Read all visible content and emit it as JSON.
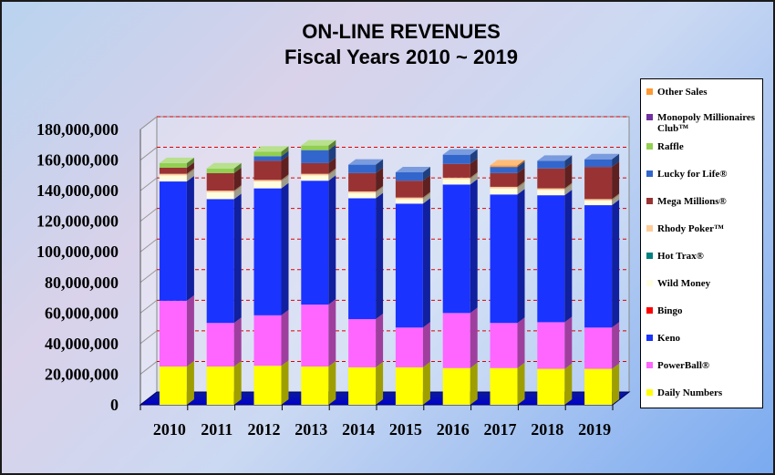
{
  "chart_data": {
    "type": "bar",
    "stacked": true,
    "title": "ON-LINE REVENUES",
    "subtitle": "Fiscal Years 2010 ~ 2019",
    "categories": [
      "2010",
      "2011",
      "2012",
      "2013",
      "2014",
      "2015",
      "2016",
      "2017",
      "2018",
      "2019"
    ],
    "ylim": [
      0,
      180000000
    ],
    "yticks": [
      "0",
      "20,000,000",
      "40,000,000",
      "60,000,000",
      "80,000,000",
      "100,000,000",
      "120,000,000",
      "140,000,000",
      "160,000,000",
      "180,000,000"
    ],
    "grid": true,
    "legend_position": "right",
    "series": [
      {
        "name": "Daily Numbers",
        "color": "#ffff00",
        "values": [
          25000000,
          25000000,
          25500000,
          25000000,
          24500000,
          24500000,
          24000000,
          24000000,
          23500000,
          23500000
        ]
      },
      {
        "name": "PowerBall®",
        "color": "#ff66ff",
        "values": [
          43000000,
          28500000,
          33000000,
          40500000,
          31500000,
          26000000,
          36000000,
          29500000,
          30500000,
          27000000
        ]
      },
      {
        "name": "Keno",
        "color": "#1a33ff",
        "values": [
          78000000,
          81000000,
          83000000,
          81000000,
          79000000,
          81000000,
          84000000,
          84000000,
          83000000,
          80000000
        ]
      },
      {
        "name": "Bingo",
        "color": "#ff0000",
        "values": [
          0,
          0,
          0,
          0,
          0,
          0,
          0,
          0,
          0,
          0
        ]
      },
      {
        "name": "Wild Money",
        "color": "#fffde0",
        "values": [
          4000000,
          4500000,
          4500000,
          3500000,
          3500000,
          3000000,
          3500000,
          4000000,
          3500000,
          3000000
        ]
      },
      {
        "name": "Hot Trax®",
        "color": "#008080",
        "values": [
          0,
          0,
          0,
          0,
          0,
          0,
          0,
          0,
          0,
          0
        ]
      },
      {
        "name": "Rhody Poker™",
        "color": "#ffcc99",
        "values": [
          1000000,
          1000000,
          1000000,
          1000000,
          1000000,
          1000000,
          1000000,
          1000000,
          1000000,
          1000000
        ]
      },
      {
        "name": "Mega Millions®",
        "color": "#993333",
        "values": [
          4000000,
          11500000,
          12500000,
          7000000,
          12000000,
          11000000,
          9000000,
          9000000,
          13000000,
          21000000
        ]
      },
      {
        "name": "Lucky for Life®",
        "color": "#3366cc",
        "values": [
          0,
          0,
          3000000,
          8500000,
          5500000,
          5500000,
          6000000,
          4000000,
          5000000,
          5000000
        ]
      },
      {
        "name": "Raffle",
        "color": "#92d050",
        "values": [
          3000000,
          3000000,
          3000000,
          3000000,
          0,
          0,
          0,
          0,
          0,
          0
        ]
      },
      {
        "name": "Monopoly Millionaires Club™",
        "color": "#7030a0",
        "values": [
          0,
          0,
          0,
          0,
          0,
          0,
          0,
          0,
          0,
          0
        ]
      },
      {
        "name": "Other Sales",
        "color": "#ff9933",
        "values": [
          0,
          0,
          0,
          0,
          0,
          0,
          0,
          1000000,
          0,
          0
        ]
      }
    ]
  }
}
